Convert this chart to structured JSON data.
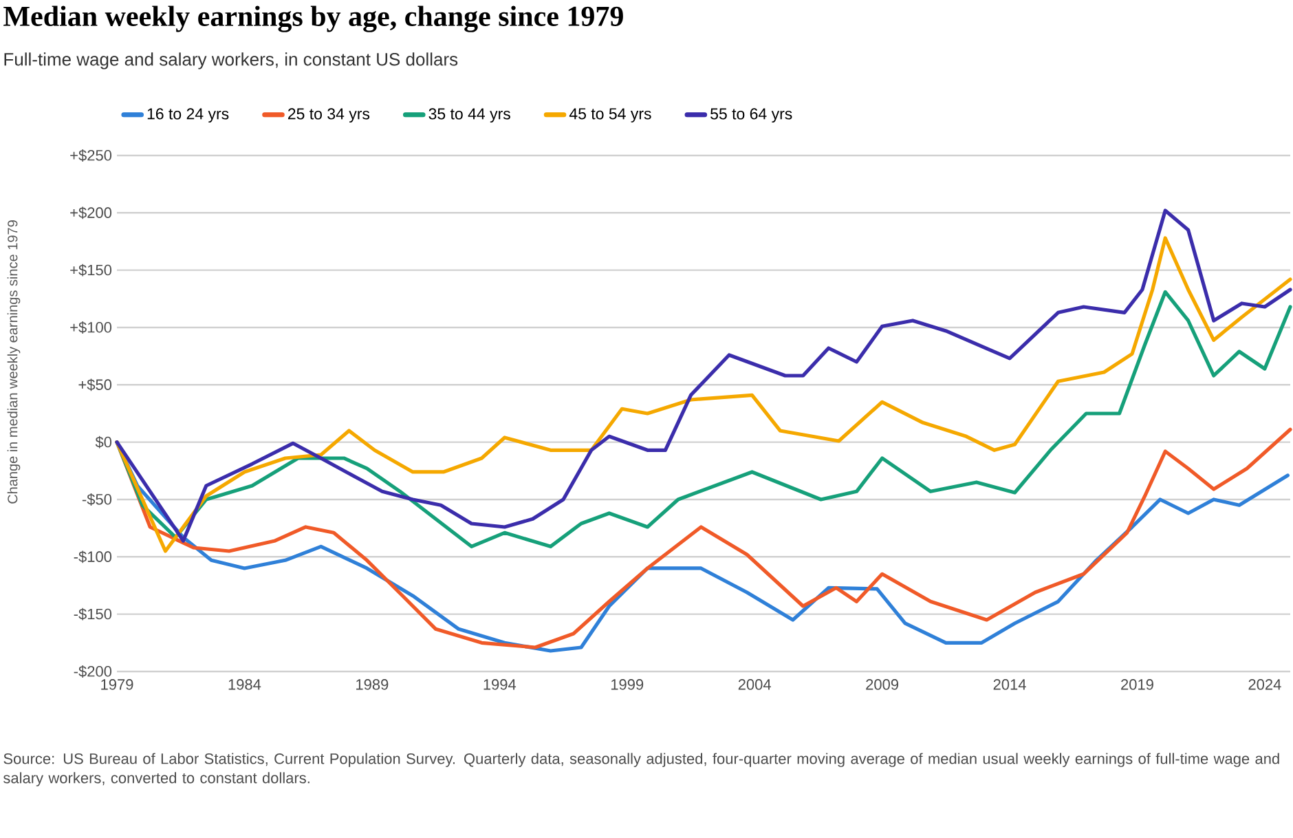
{
  "chart_data": {
    "type": "line",
    "title": "Median weekly earnings by age, change since 1979",
    "subtitle": "Full-time wage and salary workers, in constant US dollars",
    "ylabel": "Change in median weekly earnings since 1979",
    "annotations": [
      "Source: US Bureau of Labor Statistics, Current Population Survey. Quarterly data, seasonally adjusted, four-quarter moving average of median usual weekly earnings of full-time wage and salary workers, converted to constant dollars."
    ],
    "xlim": [
      1979,
      2025
    ],
    "ylim": [
      -200,
      250
    ],
    "xticks": [
      1979,
      1984,
      1989,
      1994,
      1999,
      2004,
      2009,
      2014,
      2019,
      2024
    ],
    "yticks": [
      {
        "value": 250,
        "label": "+$250"
      },
      {
        "value": 200,
        "label": "+$200"
      },
      {
        "value": 150,
        "label": "+$150"
      },
      {
        "value": 100,
        "label": "+$100"
      },
      {
        "value": 50,
        "label": "+$50"
      },
      {
        "value": 0,
        "label": "$0"
      },
      {
        "value": -50,
        "label": "-$50"
      },
      {
        "value": -100,
        "label": "-$100"
      },
      {
        "value": -150,
        "label": "-$150"
      },
      {
        "value": -200,
        "label": "-$200"
      }
    ],
    "grid": "y",
    "legend": "top",
    "line_style": "solid",
    "marker": "none",
    "series": [
      {
        "name": "16 to 24 yrs",
        "color": "#2f80d8",
        "x": [
          1979,
          1979.8,
          1981.6,
          1982.7,
          1984,
          1985.6,
          1987,
          1988.8,
          1990.6,
          1992.4,
          1994.2,
          1996,
          1997.2,
          1998.3,
          1999.8,
          2001.9,
          2003.7,
          2005.5,
          2006.9,
          2008.8,
          2009.9,
          2011.5,
          2012.9,
          2014.2,
          2015.9,
          2017.4,
          2018.8,
          2019.9,
          2021,
          2022,
          2023,
          2024.9
        ],
        "values": [
          0,
          -38,
          -83,
          -103,
          -110,
          -103,
          -91,
          -110,
          -134,
          -163,
          -175,
          -182,
          -179,
          -143,
          -110,
          -110,
          -131,
          -155,
          -127,
          -128,
          -158,
          -175,
          -175,
          -158,
          -139,
          -103,
          -74,
          -50,
          -62,
          -50,
          -55,
          -29
        ]
      },
      {
        "name": "25 to 34 yrs",
        "color": "#f05a28",
        "x": [
          1979,
          1980.3,
          1982,
          1983.4,
          1985.2,
          1986.4,
          1987.5,
          1988.8,
          1990.2,
          1991.5,
          1993.3,
          1995.4,
          1996.9,
          1998.3,
          1999.8,
          2001.9,
          2003.7,
          2005.9,
          2007.2,
          2008,
          2009,
          2010.9,
          2013.1,
          2015,
          2016.9,
          2018.6,
          2019.3,
          2020.1,
          2021,
          2022,
          2023.3,
          2025
        ],
        "values": [
          0,
          -74,
          -92,
          -95,
          -86,
          -74,
          -79,
          -103,
          -134,
          -163,
          -175,
          -179,
          -167,
          -139,
          -110,
          -74,
          -98,
          -143,
          -127,
          -139,
          -115,
          -139,
          -155,
          -131,
          -115,
          -79,
          -47,
          -8,
          -23,
          -41,
          -23,
          11
        ]
      },
      {
        "name": "35 to 44 yrs",
        "color": "#16a07a",
        "x": [
          1979,
          1980,
          1981.3,
          1982.5,
          1984.3,
          1986.1,
          1987.9,
          1988.8,
          1990.1,
          1991.5,
          1992.9,
          1994.2,
          1996,
          1997.2,
          1998.3,
          1999.8,
          2001,
          2003.9,
          2006.6,
          2008,
          2009,
          2010.9,
          2012.7,
          2014.2,
          2015.6,
          2017,
          2018.3,
          2019.3,
          2020.1,
          2021,
          2022,
          2023,
          2024,
          2025
        ],
        "values": [
          0,
          -55,
          -83,
          -50,
          -38,
          -14,
          -14,
          -23,
          -43,
          -67,
          -91,
          -79,
          -91,
          -71,
          -62,
          -74,
          -50,
          -26,
          -50,
          -43,
          -14,
          -43,
          -35,
          -44,
          -7,
          25,
          25,
          85,
          131,
          106,
          58,
          79,
          64,
          118
        ]
      },
      {
        "name": "45 to 54 yrs",
        "color": "#f5a800",
        "x": [
          1979,
          1980.9,
          1982.5,
          1984,
          1985.6,
          1987,
          1988.1,
          1989.1,
          1990.6,
          1991.8,
          1993.3,
          1994.2,
          1996,
          1997.6,
          1998.8,
          1999.8,
          2001.5,
          2003.9,
          2005,
          2007.3,
          2009,
          2010.6,
          2012.3,
          2013.4,
          2014.2,
          2015.9,
          2017.7,
          2018.8,
          2019.6,
          2020.1,
          2021,
          2022,
          2023.1,
          2025
        ],
        "values": [
          0,
          -95,
          -47,
          -26,
          -14,
          -11,
          10,
          -7,
          -26,
          -26,
          -14,
          4,
          -7,
          -7,
          29,
          25,
          37,
          41,
          10,
          1,
          35,
          17,
          5,
          -7,
          -2,
          53,
          61,
          77,
          133,
          178,
          133,
          89,
          109,
          142
        ]
      },
      {
        "name": "55 to 64 yrs",
        "color": "#3b2dab",
        "x": [
          1979,
          1981.6,
          1982.5,
          1984.3,
          1985.9,
          1987,
          1988.4,
          1989.4,
          1990.6,
          1991.7,
          1992.9,
          1994.2,
          1995.3,
          1996.5,
          1997.6,
          1998.3,
          1999.8,
          2000.5,
          2001.5,
          2003,
          2005.2,
          2005.9,
          2006.9,
          2008,
          2009,
          2010.2,
          2011.5,
          2014,
          2015.9,
          2016.9,
          2018.5,
          2019.2,
          2020.1,
          2021,
          2022,
          2023.1,
          2024,
          2025
        ],
        "values": [
          0,
          -86,
          -38,
          -19,
          -1,
          -14,
          -31,
          -43,
          -50,
          -55,
          -71,
          -74,
          -67,
          -50,
          -7,
          5,
          -7,
          -7,
          41,
          76,
          58,
          58,
          82,
          70,
          101,
          106,
          97,
          73,
          113,
          118,
          113,
          133,
          202,
          185,
          106,
          121,
          118,
          133
        ]
      }
    ]
  }
}
